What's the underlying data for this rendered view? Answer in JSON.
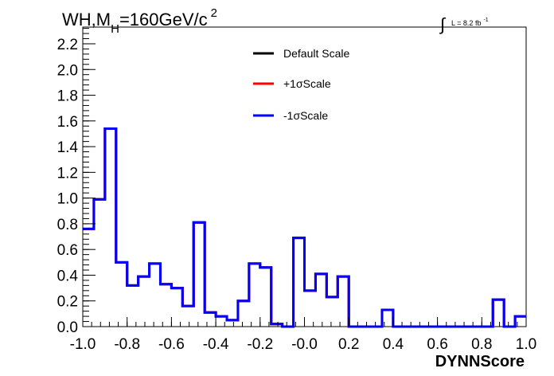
{
  "chart_data": {
    "type": "line",
    "title": "WH,M",
    "title_subscript": "H",
    "title_rest": "=160GeV/c",
    "title_superscript": "2",
    "lumi_label": "L = 8.2 fb",
    "lumi_superscript": "-1",
    "integral_symbol": "∫",
    "xlabel": "DYNNScore",
    "ylabel": "",
    "xlim": [
      -1.0,
      1.0
    ],
    "ylim": [
      0.0,
      2.33
    ],
    "grid": false,
    "legend_placement": "top-center",
    "x_ticks": [
      -1.0,
      -0.8,
      -0.6,
      -0.4,
      -0.2,
      0.0,
      0.2,
      0.4,
      0.6,
      0.8,
      1.0
    ],
    "x_tick_labels": [
      "-1.0",
      "-0.8",
      "-0.6",
      "-0.4",
      "-0.2",
      "-0.0",
      "0.2",
      "0.4",
      "0.6",
      "0.8",
      "1.0"
    ],
    "y_ticks": [
      0.0,
      0.2,
      0.4,
      0.6,
      0.8,
      1.0,
      1.2,
      1.4,
      1.6,
      1.8,
      2.0,
      2.2
    ],
    "y_tick_labels": [
      "0.0",
      "0.2",
      "0.4",
      "0.6",
      "0.8",
      "1.0",
      "1.2",
      "1.4",
      "1.6",
      "1.8",
      "2.0",
      "2.2"
    ],
    "bin_edges": [
      -1.0,
      -0.95,
      -0.9,
      -0.85,
      -0.8,
      -0.75,
      -0.7,
      -0.65,
      -0.6,
      -0.55,
      -0.5,
      -0.45,
      -0.4,
      -0.35,
      -0.3,
      -0.25,
      -0.2,
      -0.15,
      -0.1,
      -0.05,
      0.0,
      0.05,
      0.1,
      0.15,
      0.2,
      0.25,
      0.3,
      0.35,
      0.4,
      0.45,
      0.5,
      0.55,
      0.6,
      0.65,
      0.7,
      0.75,
      0.8,
      0.85,
      0.9,
      0.95,
      1.0
    ],
    "series": [
      {
        "name": "Default Scale",
        "color": "#000000",
        "values": [
          0.76,
          0.99,
          1.54,
          0.5,
          0.32,
          0.39,
          0.49,
          0.33,
          0.3,
          0.16,
          0.81,
          0.11,
          0.08,
          0.05,
          0.2,
          0.49,
          0.46,
          0.02,
          0.0,
          0.69,
          0.28,
          0.41,
          0.23,
          0.39,
          0.0,
          0.0,
          0.0,
          0.13,
          0.0,
          0.0,
          0.0,
          0.0,
          0.0,
          0.0,
          0.0,
          0.0,
          0.0,
          0.21,
          0.0,
          0.08
        ]
      },
      {
        "name": "+1σScale",
        "color": "#ff0000",
        "values": [
          0.76,
          0.99,
          1.54,
          0.5,
          0.32,
          0.39,
          0.49,
          0.33,
          0.3,
          0.16,
          0.81,
          0.11,
          0.08,
          0.05,
          0.2,
          0.49,
          0.46,
          0.02,
          0.0,
          0.69,
          0.28,
          0.41,
          0.23,
          0.39,
          0.0,
          0.0,
          0.0,
          0.13,
          0.0,
          0.0,
          0.0,
          0.0,
          0.0,
          0.0,
          0.0,
          0.0,
          0.0,
          0.21,
          0.0,
          0.08
        ]
      },
      {
        "name": "-1σScale",
        "color": "#0000ff",
        "values": [
          0.76,
          0.99,
          1.54,
          0.5,
          0.32,
          0.39,
          0.49,
          0.33,
          0.3,
          0.16,
          0.81,
          0.11,
          0.08,
          0.05,
          0.2,
          0.49,
          0.46,
          0.02,
          0.0,
          0.69,
          0.28,
          0.41,
          0.23,
          0.39,
          0.0,
          0.0,
          0.0,
          0.13,
          0.0,
          0.0,
          0.0,
          0.0,
          0.0,
          0.0,
          0.0,
          0.0,
          0.0,
          0.21,
          0.0,
          0.08
        ]
      }
    ]
  }
}
